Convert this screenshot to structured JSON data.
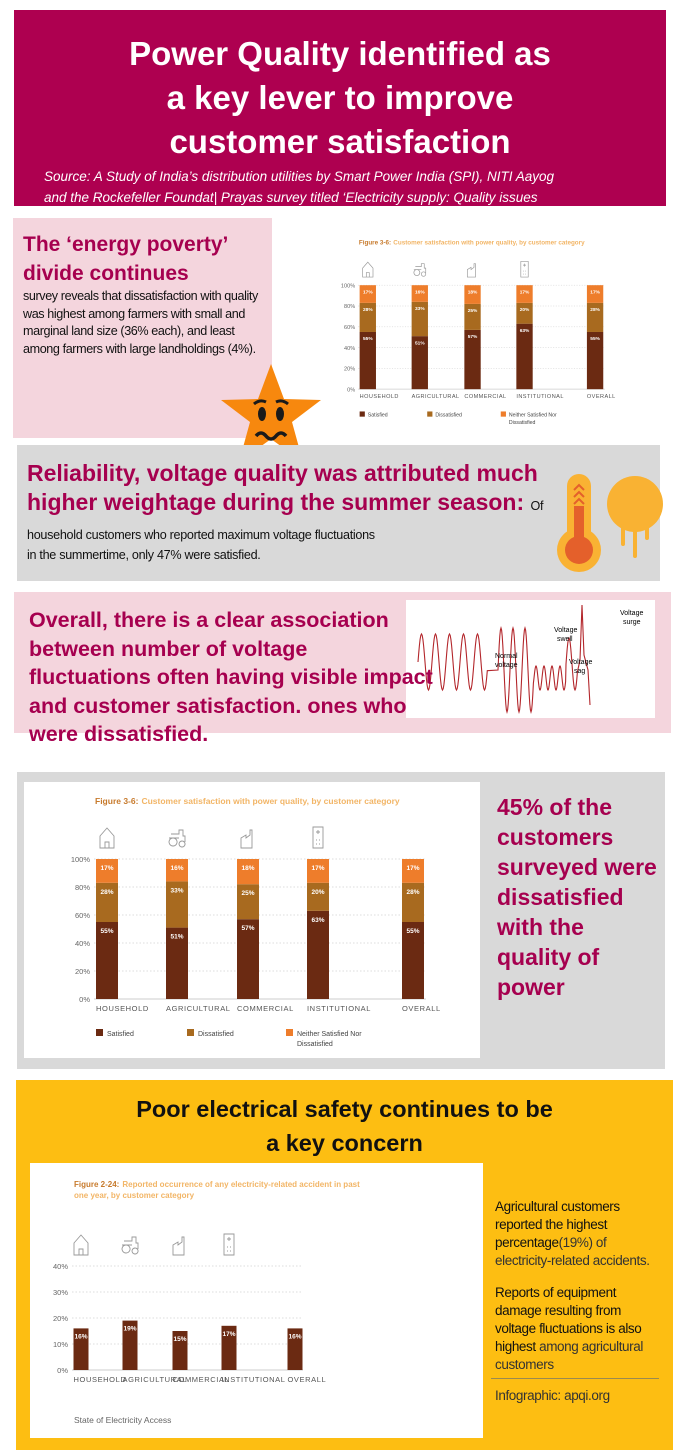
{
  "header": {
    "title_lines": [
      "Power Quality identified as",
      "a key lever to improve",
      "customer satisfaction"
    ],
    "source_lines": [
      "Source: A Study of India’s distribution utilities by Smart Power India (SPI), NITI Aayog",
      "and the Rockefeller Foundat| Prayas survey titled ‘Electricity supply: Quality issues"
    ]
  },
  "energy_poverty": {
    "heading": "The ‘energy poverty’ divide continues",
    "body": "survey reveals that dissatisfaction with quality was highest among farmers with small and marginal land size (36% each), and least among farmers with large landholdings (4%)."
  },
  "summer": {
    "heading": "Reliability, voltage quality was attributed much higher weightage during the summer season:",
    "body_inline": "Of household customers who reported maximum voltage fluctuations",
    "body_rest": "in the summertime, only 47% were satisfied."
  },
  "association": {
    "heading": "Overall, there is a clear association between number of voltage fluctuations often having visible impact and customer satisfaction. ones who were dissatisfied.",
    "wave_labels": {
      "normal": [
        "Normal",
        "voltage"
      ],
      "swell": [
        "Voltage",
        "swell"
      ],
      "sag": [
        "Voltage",
        "sag"
      ],
      "surge": [
        "Voltage",
        "surge"
      ]
    },
    "wave_color": "#B3262B"
  },
  "dissatisfied": {
    "text": "45% of the customers surveyed were dissatisfied with the quality of power"
  },
  "safety": {
    "heading_lines": [
      "Poor electrical safety continues to be",
      "a key concern"
    ],
    "p1_bold": "Agricultural customers reported the highest percentage",
    "p1_rest": "(19%) of electricity-related accidents.",
    "p2_bold": "Reports of equipment damage resulting from voltage fluctuations is also highest",
    "p2_rest": "among agricultural customers",
    "credit": "Infographic:  apqi.org"
  },
  "colors": {
    "magenta": "#AE0050",
    "pink_panel": "#F4D5DD",
    "gray_panel": "#D9D9D9",
    "yellow_panel": "#FDBE12",
    "satisfied": "#6B2A12",
    "dissatisfied": "#A86A1F",
    "neither": "#EE7D2B",
    "chart_title": "#F2B566"
  },
  "chart_data": [
    {
      "type": "bar",
      "stacked": true,
      "title_prefix": "Figure 3-6:",
      "title": "Customer satisfaction with power quality, by customer category",
      "categories": [
        "HOUSEHOLD",
        "AGRICULTURAL",
        "COMMERCIAL",
        "INSTITUTIONAL",
        "OVERALL"
      ],
      "category_icons": [
        "house-icon",
        "tractor-icon",
        "factory-icon",
        "hospital-icon",
        ""
      ],
      "series": [
        {
          "name": "Satisfied",
          "values": [
            55,
            51,
            57,
            63,
            55
          ],
          "color": "#6B2A12"
        },
        {
          "name": "Dissatisfied",
          "values": [
            28,
            33,
            25,
            20,
            28
          ],
          "color": "#A86A1F"
        },
        {
          "name": "Neither Satisfied Nor Dissatisfied",
          "values": [
            17,
            16,
            18,
            17,
            17
          ],
          "color": "#EE7D2B"
        }
      ],
      "value_labels": [
        [
          "55%",
          "51%",
          "57%",
          "63%",
          "55%"
        ],
        [
          "28%",
          "33%",
          "25%",
          "20%",
          "28%"
        ],
        [
          "17%",
          "16%",
          "18%",
          "17%",
          "17%"
        ]
      ],
      "yticks": [
        "0%",
        "20%",
        "40%",
        "60%",
        "80%",
        "100%"
      ],
      "ylim": [
        0,
        100
      ],
      "grid": true,
      "legend": "bottom"
    },
    {
      "type": "bar",
      "title_prefix": "Figure 2-24:",
      "title_lines": [
        "Reported occurrence of any electricity-related accident in past",
        "one year, by customer category"
      ],
      "categories": [
        "HOUSEHOLD",
        "AGRICULTURAL",
        "COMMERCIAL",
        "INSTITUTIONAL",
        "OVERALL"
      ],
      "category_icons": [
        "house-icon",
        "tractor-icon",
        "factory-icon",
        "hospital-icon",
        ""
      ],
      "values": [
        16,
        19,
        15,
        17,
        16
      ],
      "value_labels": [
        "16%",
        "19%",
        "15%",
        "17%",
        "16%"
      ],
      "color": "#6B2A12",
      "yticks": [
        "0%",
        "10%",
        "20%",
        "30%",
        "40%"
      ],
      "ylim": [
        0,
        40
      ],
      "grid": true,
      "footer": "State of Electricity Access"
    }
  ]
}
